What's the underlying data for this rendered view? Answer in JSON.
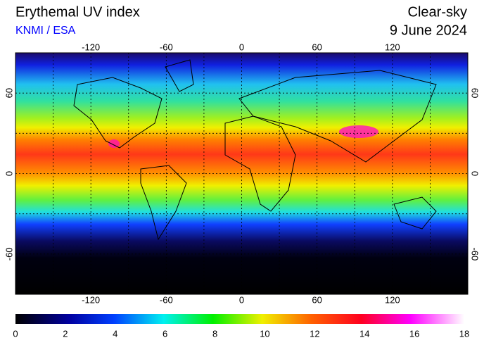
{
  "header": {
    "title": "Erythemal UV index",
    "source": "KNMI / ESA",
    "condition": "Clear-sky",
    "date": "9 June 2024"
  },
  "map": {
    "lon_range": [
      -180,
      180
    ],
    "lat_range": [
      -90,
      90
    ],
    "lon_ticks": [
      -120,
      -60,
      0,
      60,
      120
    ],
    "lat_ticks": [
      60,
      0,
      -60
    ],
    "lon_gridlines": [
      -150,
      -120,
      -90,
      -60,
      -30,
      0,
      30,
      60,
      90,
      120,
      150
    ],
    "lat_gridlines": [
      60,
      30,
      0,
      -30,
      -60
    ]
  },
  "colorbar": {
    "range": [
      0,
      18
    ],
    "ticks": [
      0,
      2,
      4,
      6,
      8,
      10,
      12,
      14,
      16,
      18
    ]
  }
}
